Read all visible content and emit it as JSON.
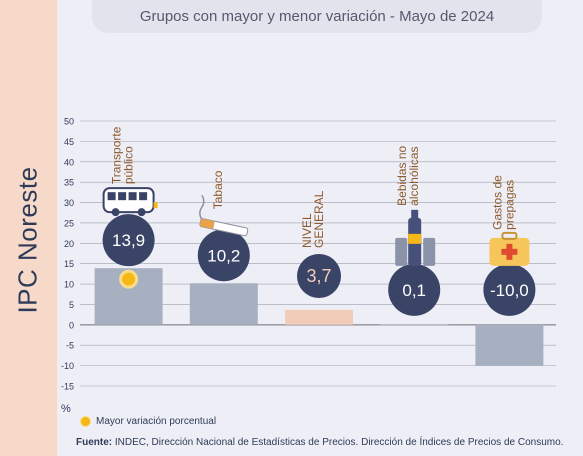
{
  "title": "Grupos con mayor y menor variación - Mayo de 2024",
  "side_label": "IPC Noreste",
  "unit_label": "%",
  "legend_label": "Mayor variación porcentual",
  "source_prefix": "Fuente:",
  "source_text": " INDEC, Dirección Nacional de Estadísticas de Precios. Dirección de Índices de Precios de Consumo.",
  "colors": {
    "bar": "#a7b0c0",
    "bar_general": "#f1cdb9",
    "bubble": "#3a4466",
    "bubble_text": "#ffffff",
    "category_text": "#8e5a2c",
    "grid": "#5a6070",
    "highlight": "#f5b816"
  },
  "chart_data": {
    "type": "bar",
    "title": "Grupos con mayor y menor variación - Mayo de 2024",
    "ylabel": "%",
    "ylim": [
      -15,
      50
    ],
    "yticks": [
      50,
      45,
      40,
      35,
      30,
      25,
      20,
      15,
      10,
      5,
      0,
      -5,
      -10,
      -15
    ],
    "grid": true,
    "categories": [
      {
        "label": [
          "Transporte",
          "público"
        ],
        "value": 13.9,
        "value_label": "13,9",
        "icon": "bus-icon",
        "highlight": true,
        "general": false
      },
      {
        "label": [
          "Tabaco"
        ],
        "value": 10.2,
        "value_label": "10,2",
        "icon": "cigarette-icon",
        "highlight": false,
        "general": false
      },
      {
        "label": [
          "NIVEL",
          "GENERAL"
        ],
        "value": 3.7,
        "value_label": "3,7",
        "icon": "",
        "highlight": false,
        "general": true
      },
      {
        "label": [
          "Bebidas no",
          "alcohólicas"
        ],
        "value": 0.1,
        "value_label": "0,1",
        "icon": "bottles-icon",
        "highlight": false,
        "general": false
      },
      {
        "label": [
          "Gastos de",
          "prepagas"
        ],
        "value": -10.0,
        "value_label": "-10,0",
        "icon": "first-aid-kit-icon",
        "highlight": false,
        "general": false
      }
    ]
  }
}
